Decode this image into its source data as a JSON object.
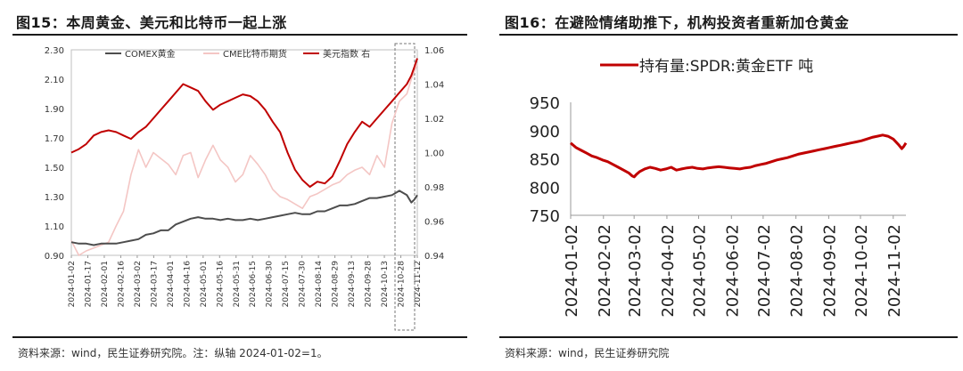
{
  "fig15": {
    "title": "图15：本周黄金、美元和比特币一起上涨",
    "source": "资料来源：wind，民生证券研究院。注：纵轴 2024-01-02=1。"
  },
  "fig16": {
    "title": "图16：在避险情绪助推下，机构投资者重新加仓黄金",
    "source": "资料来源：wind，民生证券研究院"
  },
  "chart_data": [
    {
      "type": "line",
      "title": "图15：本周黄金、美元和比特币一起上涨",
      "xlabel": "",
      "ylabel": "",
      "y_left_ticks": [
        "2.30",
        "2.10",
        "1.90",
        "1.70",
        "1.50",
        "1.30",
        "1.10",
        "0.90"
      ],
      "ylim_left": [
        0.9,
        2.3
      ],
      "y_right_ticks": [
        "1.06",
        "1.04",
        "1.02",
        "1.00",
        "0.98",
        "0.96",
        "0.94"
      ],
      "ylim_right": [
        0.94,
        1.06
      ],
      "x_ticks": [
        "2024-01-02",
        "2024-01-17",
        "2024-02-01",
        "2024-02-16",
        "2024-03-02",
        "2024-03-17",
        "2024-04-01",
        "2024-04-16",
        "2024-05-01",
        "2024-05-16",
        "2024-05-31",
        "2024-06-15",
        "2024-06-30",
        "2024-07-15",
        "2024-07-30",
        "2024-08-14",
        "2024-08-29",
        "2024-09-13",
        "2024-09-28",
        "2024-10-13",
        "2024-10-28",
        "2024-11-12"
      ],
      "legend": [
        "COMEX黄金",
        "CME比特币期货",
        "美元指数 右"
      ],
      "legend_position": "top",
      "grid": false,
      "series": [
        {
          "name": "COMEX黄金",
          "axis": "left",
          "color": "#4d4d4d",
          "x": [
            0,
            5,
            10,
            15,
            20,
            25,
            30,
            35,
            40,
            45,
            50,
            55,
            60,
            65,
            70,
            75,
            80,
            85,
            90,
            95,
            100,
            105,
            110,
            115,
            120,
            125,
            130,
            135,
            140,
            145,
            150,
            155,
            160,
            165,
            170,
            175,
            180,
            185,
            190,
            195,
            200,
            205,
            210,
            215,
            220,
            225,
            228,
            230,
            232
          ],
          "values": [
            0.99,
            0.98,
            0.98,
            0.97,
            0.98,
            0.98,
            0.98,
            0.99,
            1.0,
            1.01,
            1.04,
            1.05,
            1.07,
            1.07,
            1.11,
            1.13,
            1.15,
            1.16,
            1.15,
            1.15,
            1.14,
            1.15,
            1.14,
            1.14,
            1.15,
            1.14,
            1.15,
            1.16,
            1.17,
            1.18,
            1.19,
            1.18,
            1.18,
            1.2,
            1.2,
            1.22,
            1.24,
            1.24,
            1.25,
            1.27,
            1.29,
            1.29,
            1.3,
            1.31,
            1.34,
            1.31,
            1.26,
            1.28,
            1.31
          ]
        },
        {
          "name": "CME比特币期货",
          "axis": "left",
          "color": "#f4c6c4",
          "x": [
            0,
            5,
            10,
            15,
            20,
            25,
            30,
            35,
            40,
            45,
            50,
            55,
            60,
            65,
            70,
            75,
            80,
            85,
            90,
            95,
            100,
            105,
            110,
            115,
            120,
            125,
            130,
            135,
            140,
            145,
            150,
            155,
            160,
            165,
            170,
            175,
            180,
            185,
            190,
            195,
            200,
            205,
            210,
            215,
            220,
            225,
            228,
            230,
            232
          ],
          "values": [
            1.0,
            0.9,
            0.93,
            0.95,
            0.97,
            0.99,
            1.1,
            1.2,
            1.45,
            1.62,
            1.5,
            1.6,
            1.56,
            1.52,
            1.45,
            1.58,
            1.6,
            1.43,
            1.55,
            1.65,
            1.55,
            1.5,
            1.4,
            1.45,
            1.58,
            1.52,
            1.45,
            1.35,
            1.3,
            1.28,
            1.25,
            1.22,
            1.3,
            1.32,
            1.35,
            1.38,
            1.4,
            1.45,
            1.48,
            1.5,
            1.45,
            1.58,
            1.5,
            1.8,
            1.95,
            2.0,
            2.1,
            2.15,
            2.2
          ]
        },
        {
          "name": "美元指数 右",
          "axis": "right",
          "color": "#c00000",
          "x": [
            0,
            5,
            10,
            15,
            20,
            25,
            30,
            35,
            40,
            45,
            50,
            55,
            60,
            65,
            70,
            75,
            80,
            85,
            90,
            95,
            100,
            105,
            110,
            115,
            120,
            125,
            130,
            135,
            140,
            145,
            150,
            155,
            160,
            165,
            170,
            175,
            180,
            185,
            190,
            195,
            200,
            205,
            210,
            215,
            220,
            225,
            228,
            230,
            232
          ],
          "values": [
            1.0,
            1.002,
            1.005,
            1.01,
            1.012,
            1.013,
            1.012,
            1.01,
            1.008,
            1.012,
            1.015,
            1.02,
            1.025,
            1.03,
            1.035,
            1.04,
            1.038,
            1.036,
            1.03,
            1.025,
            1.028,
            1.03,
            1.032,
            1.034,
            1.033,
            1.03,
            1.025,
            1.018,
            1.012,
            1.0,
            0.99,
            0.984,
            0.98,
            0.983,
            0.982,
            0.986,
            0.995,
            1.005,
            1.012,
            1.018,
            1.015,
            1.02,
            1.025,
            1.03,
            1.035,
            1.04,
            1.045,
            1.05,
            1.055
          ]
        }
      ]
    },
    {
      "type": "line",
      "title": "图16：在避险情绪助推下，机构投资者重新加仓黄金",
      "xlabel": "",
      "ylabel": "",
      "y_ticks": [
        "950",
        "900",
        "850",
        "800",
        "750"
      ],
      "ylim": [
        750,
        950
      ],
      "x_ticks": [
        "2024-01-02",
        "2024-02-02",
        "2024-03-02",
        "2024-04-02",
        "2024-05-02",
        "2024-06-02",
        "2024-07-02",
        "2024-08-02",
        "2024-09-02",
        "2024-10-02",
        "2024-11-02"
      ],
      "legend": [
        "持有量:SPDR:黄金ETF 吨"
      ],
      "legend_position": "top",
      "grid": false,
      "series": [
        {
          "name": "持有量:SPDR:黄金ETF 吨",
          "color": "#c00000",
          "x": [
            0,
            5,
            10,
            15,
            20,
            25,
            30,
            35,
            40,
            45,
            50,
            55,
            58,
            60,
            62,
            65,
            70,
            75,
            80,
            85,
            90,
            95,
            100,
            105,
            110,
            115,
            120,
            125,
            130,
            135,
            140,
            145,
            150,
            155,
            160,
            165,
            170,
            175,
            180,
            185,
            190,
            195,
            200,
            205,
            210,
            215,
            220,
            225,
            230,
            235,
            240,
            245,
            250,
            255,
            260,
            265,
            270,
            275,
            280,
            285,
            290,
            295,
            300,
            305,
            310,
            313,
            315,
            317
          ],
          "values": [
            878,
            870,
            865,
            860,
            855,
            852,
            848,
            845,
            840,
            835,
            830,
            825,
            820,
            818,
            822,
            827,
            832,
            835,
            833,
            830,
            832,
            835,
            830,
            832,
            834,
            835,
            833,
            832,
            834,
            835,
            836,
            835,
            834,
            833,
            832,
            834,
            835,
            838,
            840,
            842,
            845,
            848,
            850,
            852,
            855,
            858,
            860,
            862,
            864,
            866,
            868,
            870,
            872,
            874,
            876,
            878,
            880,
            882,
            885,
            888,
            890,
            892,
            890,
            885,
            875,
            868,
            872,
            878
          ]
        }
      ]
    }
  ]
}
